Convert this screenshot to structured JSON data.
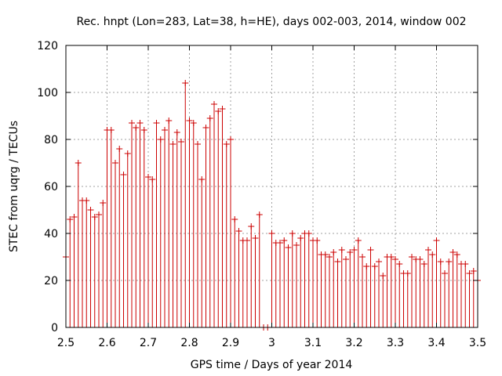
{
  "chart_data": {
    "type": "scatter",
    "title": "Rec. hnpt (Lon=283, Lat=38, h=HE), days 002-003, 2014, window 002",
    "xlabel": "GPS time / Days of year 2014",
    "ylabel": "STEC from uqrg / TECUs",
    "xlim": [
      2.5,
      3.5
    ],
    "ylim": [
      0,
      120
    ],
    "grid": true,
    "x_ticks": [
      2.5,
      2.6,
      2.7,
      2.8,
      2.9,
      3.0,
      3.1,
      3.2,
      3.3,
      3.4,
      3.5
    ],
    "x_tick_labels": [
      "2.5",
      "2.6",
      "2.7",
      "2.8",
      "2.9",
      "3",
      "3.1",
      "3.2",
      "3.3",
      "3.4",
      "3.5"
    ],
    "y_ticks": [
      0,
      20,
      40,
      60,
      80,
      100,
      120
    ],
    "y_tick_labels": [
      "0",
      "20",
      "40",
      "60",
      "80",
      "100",
      "120"
    ],
    "series": [
      {
        "name": "STEC (vertical bars from 0 with + markers)",
        "color": "#cc0000",
        "x": [
          2.5,
          2.51,
          2.52,
          2.53,
          2.54,
          2.55,
          2.56,
          2.57,
          2.58,
          2.59,
          2.6,
          2.61,
          2.62,
          2.63,
          2.64,
          2.65,
          2.66,
          2.67,
          2.68,
          2.69,
          2.7,
          2.71,
          2.72,
          2.73,
          2.74,
          2.75,
          2.76,
          2.77,
          2.78,
          2.79,
          2.8,
          2.81,
          2.82,
          2.83,
          2.84,
          2.85,
          2.86,
          2.87,
          2.88,
          2.89,
          2.9,
          2.91,
          2.92,
          2.93,
          2.94,
          2.95,
          2.96,
          2.97,
          2.98,
          2.99,
          3.0,
          3.01,
          3.02,
          3.03,
          3.04,
          3.05,
          3.06,
          3.07,
          3.08,
          3.09,
          3.1,
          3.11,
          3.12,
          3.13,
          3.14,
          3.15,
          3.16,
          3.17,
          3.18,
          3.19,
          3.2,
          3.21,
          3.22,
          3.23,
          3.24,
          3.25,
          3.26,
          3.27,
          3.28,
          3.29,
          3.3,
          3.31,
          3.32,
          3.33,
          3.34,
          3.35,
          3.36,
          3.37,
          3.38,
          3.39,
          3.4,
          3.41,
          3.42,
          3.43,
          3.44,
          3.45,
          3.46,
          3.47,
          3.48,
          3.49,
          3.5
        ],
        "y": [
          30,
          46,
          47,
          70,
          54,
          54,
          50,
          47,
          48,
          53,
          84,
          84,
          70,
          76,
          65,
          74,
          87,
          85,
          87,
          84,
          64,
          63,
          87,
          80,
          84,
          88,
          78,
          83,
          79,
          104,
          88,
          87,
          78,
          63,
          85,
          89,
          95,
          92,
          93,
          78,
          80,
          46,
          41,
          37,
          37,
          43,
          38,
          48,
          0,
          0,
          40,
          36,
          36,
          37,
          34,
          40,
          35,
          38,
          40,
          40,
          37,
          37,
          31,
          31,
          30,
          32,
          28,
          33,
          29,
          32,
          33,
          37,
          30,
          26,
          33,
          26,
          28,
          22,
          30,
          30,
          29,
          27,
          23,
          23,
          30,
          29,
          29,
          27,
          33,
          31,
          37,
          28,
          23,
          28,
          32,
          31,
          27,
          27,
          23,
          24,
          20
        ]
      }
    ]
  }
}
